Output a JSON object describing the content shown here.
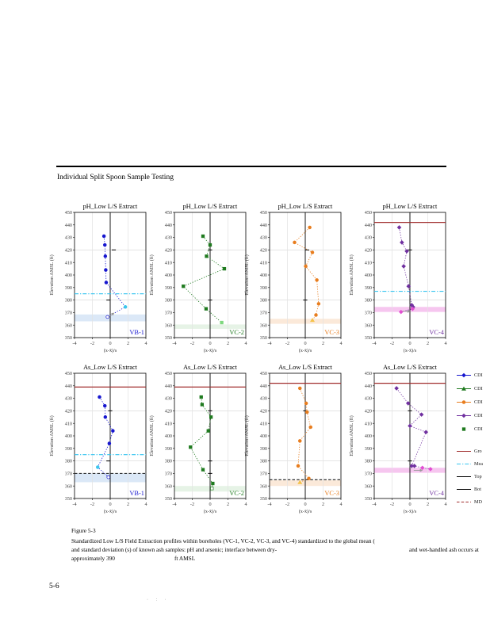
{
  "page": {
    "heading": "Individual Split Spoon Sample Testing",
    "figure_label": "Figure 5-3",
    "caption_line1": "Standardized Low L/S Field Extraction profiles within boreholes (VC-1, VC-2, VC-3, and VC-4) standardized to the global mean (",
    "caption_line2_left": "and standard deviation (s) of known ash samples: pH and arsenic; interface between dry-",
    "caption_line2_right": "and wet-handled ash occurs at",
    "caption_line3_left": "approximately 390",
    "caption_line3_right": "ft AMSL",
    "page_number": "5-6",
    "footer_marks": "· : ·"
  },
  "colors": {
    "blue": "#1616cf",
    "green": "#1f7a1f",
    "orange": "#e87d1e",
    "purple": "#7030a0",
    "cyan": "#35c4f0",
    "dark_red": "#a02c2c",
    "gray_arrow": "#9a9a9a"
  },
  "axes": {
    "xlabel": "(x-x̄)/s",
    "ylabel": "Elevation AMSL (ft)",
    "xlim": [
      -4,
      4
    ],
    "ylim": [
      350,
      450
    ],
    "xticks": [
      -4,
      -2,
      0,
      2,
      4
    ],
    "yticks": [
      450,
      440,
      430,
      420,
      410,
      400,
      390,
      380,
      370,
      360,
      350
    ],
    "gridlines_h": [
      420,
      380
    ],
    "gridlines_v": [
      -2,
      2
    ]
  },
  "legend": {
    "series_items": [
      {
        "label": "CDI",
        "color": "#1616cf",
        "marker": "diamond",
        "line": "solid"
      },
      {
        "label": "CDI",
        "color": "#1f7a1f",
        "marker": "triangle",
        "line": "solid"
      },
      {
        "label": "CDI",
        "color": "#e87d1e",
        "marker": "circle",
        "line": "solid"
      },
      {
        "label": "CDI",
        "color": "#7030a0",
        "marker": "diamond",
        "line": "solid"
      },
      {
        "label": "CDI",
        "color": "#1f7a1f",
        "marker": "square",
        "line": "none"
      }
    ],
    "line_items": [
      {
        "label": "Gro",
        "color": "#a02c2c",
        "line": "solid"
      },
      {
        "label": "Mea",
        "color": "#35c4f0",
        "line": "dashdot"
      },
      {
        "label": "Top",
        "color": "#000000",
        "line": "solid"
      },
      {
        "label": "Bot",
        "color": "#000000",
        "line": "solid"
      },
      {
        "label": "MD",
        "color": "#a02c2c",
        "line": "dashed"
      }
    ]
  },
  "chart_data": [
    {
      "id": "ph-vb1",
      "row": 0,
      "col": 0,
      "type": "scatter",
      "title": "pH_Low L/S Extract",
      "borehole": "VB-1",
      "color": "#1616cf",
      "marker": "circle",
      "points": [
        {
          "x": -0.7,
          "y": 431
        },
        {
          "x": -0.6,
          "y": 424
        },
        {
          "x": -0.55,
          "y": 415
        },
        {
          "x": -0.5,
          "y": 404
        },
        {
          "x": -0.45,
          "y": 394
        },
        {
          "x": 1.7,
          "y": 374.5,
          "color": "#3cc6ee"
        },
        {
          "x": -0.3,
          "y": 366.5,
          "open": true
        }
      ],
      "dashes": [
        {
          "x": 0.4,
          "y": 420
        },
        {
          "x": -0.2,
          "y": 380
        }
      ],
      "reflines": [
        {
          "y": 385,
          "style": "dashdot",
          "color": "#35c4f0"
        }
      ],
      "band": {
        "from": 363,
        "to": 368.5,
        "color": "#dbe8f7"
      },
      "arrows": [
        {
          "x": 0.15,
          "y": 368.2,
          "dir": "ne"
        }
      ]
    },
    {
      "id": "ph-vc2",
      "row": 0,
      "col": 1,
      "type": "scatter",
      "title": "pH_Low L/S Extract",
      "borehole": "VC-2",
      "color": "#1f7a1f",
      "marker": "square",
      "points": [
        {
          "x": -0.8,
          "y": 431
        },
        {
          "x": 0.0,
          "y": 424
        },
        {
          "x": -0.4,
          "y": 415
        },
        {
          "x": 1.6,
          "y": 405
        },
        {
          "x": -3.0,
          "y": 391
        },
        {
          "x": -0.45,
          "y": 373
        },
        {
          "x": 1.3,
          "y": 362,
          "color": "#7ed87e"
        }
      ],
      "dashes": [
        {
          "x": 0,
          "y": 420
        },
        {
          "x": 0,
          "y": 380
        }
      ],
      "reflines": [],
      "band": {
        "from": 357,
        "to": 360.5,
        "color": "#e6f3e6"
      },
      "arrows": []
    },
    {
      "id": "ph-vc3",
      "row": 0,
      "col": 2,
      "type": "scatter",
      "title": "pH_Low L/S Extract",
      "borehole": "VC-3",
      "color": "#e87d1e",
      "marker": "circle",
      "points": [
        {
          "x": 0.5,
          "y": 438
        },
        {
          "x": -1.2,
          "y": 426
        },
        {
          "x": 0.8,
          "y": 418
        },
        {
          "x": 0.05,
          "y": 407
        },
        {
          "x": 1.3,
          "y": 396
        },
        {
          "x": 1.5,
          "y": 377
        },
        {
          "x": 1.2,
          "y": 368
        },
        {
          "x": 0.8,
          "y": 364,
          "color": "#f5c24a",
          "shape": "triangle"
        }
      ],
      "dashes": [
        {
          "x": 0.2,
          "y": 420
        },
        {
          "x": 0,
          "y": 380
        }
      ],
      "reflines": [],
      "band": {
        "from": 361,
        "to": 365,
        "color": "#fbe9d9"
      },
      "arrows": []
    },
    {
      "id": "ph-vc4",
      "row": 0,
      "col": 3,
      "type": "scatter",
      "title": "pH_Low L/S Extract",
      "borehole": "VC-4",
      "color": "#7030a0",
      "marker": "diamond",
      "points": [
        {
          "x": -1.2,
          "y": 438
        },
        {
          "x": -0.9,
          "y": 426
        },
        {
          "x": -0.35,
          "y": 419
        },
        {
          "x": -0.7,
          "y": 407
        },
        {
          "x": -0.15,
          "y": 391
        },
        {
          "x": 0.2,
          "y": 376
        },
        {
          "x": 0.35,
          "y": 374.5
        },
        {
          "x": 0.3,
          "y": 373,
          "color": "#e24fd2"
        },
        {
          "x": -1.0,
          "y": 370.5,
          "color": "#e24fd2"
        }
      ],
      "dashes": [
        {
          "x": 0,
          "y": 420
        }
      ],
      "reflines": [
        {
          "y": 442,
          "style": "solid",
          "color": "#a02c2c"
        },
        {
          "y": 387,
          "style": "dashdot",
          "color": "#35c4f0"
        }
      ],
      "band": {
        "from": 370.5,
        "to": 374.5,
        "color": "#f6c6ef"
      },
      "arrows": [
        {
          "x": -0.35,
          "y": 371,
          "dir": "e"
        }
      ]
    },
    {
      "id": "as-vb1",
      "row": 1,
      "col": 0,
      "type": "scatter",
      "title": "As_Low L/S Extract",
      "borehole": "VB-1",
      "color": "#1616cf",
      "marker": "circle",
      "points": [
        {
          "x": -1.2,
          "y": 431
        },
        {
          "x": -0.6,
          "y": 424
        },
        {
          "x": -0.55,
          "y": 415
        },
        {
          "x": 0.3,
          "y": 404
        },
        {
          "x": -0.1,
          "y": 394
        },
        {
          "x": -1.4,
          "y": 375,
          "color": "#3cc6ee"
        },
        {
          "x": -0.2,
          "y": 367,
          "open": true
        }
      ],
      "dashes": [
        {
          "x": 0,
          "y": 420
        },
        {
          "x": -0.2,
          "y": 380
        }
      ],
      "reflines": [
        {
          "y": 439,
          "style": "solid",
          "color": "#a02c2c"
        },
        {
          "y": 385,
          "style": "dashdot",
          "color": "#35c4f0"
        },
        {
          "y": 370,
          "style": "dashed",
          "color": "#1a1a1a"
        }
      ],
      "band": {
        "from": 363,
        "to": 370,
        "color": "#dbe8f7"
      },
      "arrows": []
    },
    {
      "id": "as-vc2",
      "row": 1,
      "col": 1,
      "type": "scatter",
      "title": "As_Low L/S Extract",
      "borehole": "VC-2",
      "color": "#1f7a1f",
      "marker": "square",
      "points": [
        {
          "x": -1.0,
          "y": 431
        },
        {
          "x": -0.9,
          "y": 425
        },
        {
          "x": 0.1,
          "y": 415
        },
        {
          "x": -0.2,
          "y": 404
        },
        {
          "x": -2.2,
          "y": 391
        },
        {
          "x": -0.8,
          "y": 373
        },
        {
          "x": 0.3,
          "y": 362
        },
        {
          "x": 0.2,
          "y": 358,
          "open": true
        }
      ],
      "dashes": [
        {
          "x": 0,
          "y": 420
        },
        {
          "x": 0,
          "y": 380
        },
        {
          "x": 0,
          "y": 370
        }
      ],
      "reflines": [
        {
          "y": 439,
          "style": "solid",
          "color": "#a02c2c"
        }
      ],
      "band": {
        "from": 355.5,
        "to": 360,
        "color": "#e6f3e6"
      },
      "arrows": []
    },
    {
      "id": "as-vc3",
      "row": 1,
      "col": 2,
      "type": "scatter",
      "title": "As_Low L/S Extract",
      "borehole": "VC-3",
      "color": "#e87d1e",
      "marker": "circle",
      "points": [
        {
          "x": -0.6,
          "y": 438
        },
        {
          "x": 0.1,
          "y": 426
        },
        {
          "x": 0.2,
          "y": 419
        },
        {
          "x": 0.6,
          "y": 407
        },
        {
          "x": -0.6,
          "y": 396
        },
        {
          "x": -0.8,
          "y": 376
        },
        {
          "x": 0.4,
          "y": 366
        },
        {
          "x": -0.6,
          "y": 363,
          "color": "#f5c24a",
          "shape": "triangle"
        }
      ],
      "dashes": [
        {
          "x": 0,
          "y": 420
        }
      ],
      "reflines": [
        {
          "y": 442,
          "style": "solid",
          "color": "#a02c2c"
        },
        {
          "y": 365,
          "style": "dashed",
          "color": "#1a1a1a"
        }
      ],
      "band": {
        "from": 360,
        "to": 364.5,
        "color": "#fbe9d9"
      },
      "arrows": []
    },
    {
      "id": "as-vc4",
      "row": 1,
      "col": 3,
      "type": "scatter",
      "title": "As_Low L/S Extract",
      "borehole": "VC-4",
      "color": "#7030a0",
      "marker": "diamond",
      "points": [
        {
          "x": -1.5,
          "y": 438
        },
        {
          "x": -0.2,
          "y": 426
        },
        {
          "x": 1.3,
          "y": 417
        },
        {
          "x": 0.0,
          "y": 408
        },
        {
          "x": 1.8,
          "y": 403
        },
        {
          "x": 0.2,
          "y": 376
        },
        {
          "x": 0.5,
          "y": 376
        },
        {
          "x": 1.4,
          "y": 374.5,
          "color": "#e24fd2"
        },
        {
          "x": 2.3,
          "y": 373.5,
          "color": "#e24fd2"
        }
      ],
      "dashes": [
        {
          "x": 0,
          "y": 420
        },
        {
          "x": 0,
          "y": 380
        }
      ],
      "reflines": [
        {
          "y": 442,
          "style": "solid",
          "color": "#a02c2c"
        }
      ],
      "band": {
        "from": 370.5,
        "to": 374.5,
        "color": "#f6c6ef"
      },
      "arrows": [
        {
          "x": 1.05,
          "y": 372.5,
          "dir": "e"
        }
      ]
    }
  ]
}
